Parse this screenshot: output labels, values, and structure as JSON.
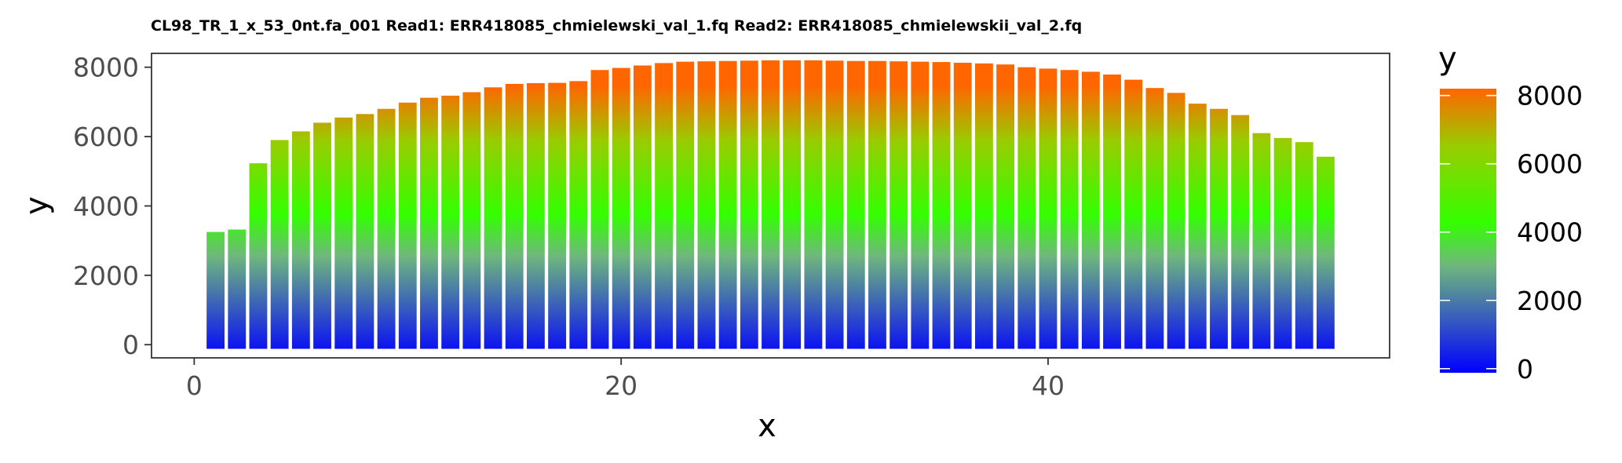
{
  "chart_data": {
    "type": "bar",
    "title": "CL98_TR_1_x_53_0nt.fa_001 Read1: ERR418085_chmielewski_val_1.fq Read2: ERR418085_chmielewskii_val_2.fq",
    "xlabel": "x",
    "ylabel": "y",
    "x": [
      1,
      2,
      3,
      4,
      5,
      6,
      7,
      8,
      9,
      10,
      11,
      12,
      13,
      14,
      15,
      16,
      17,
      18,
      19,
      20,
      21,
      22,
      23,
      24,
      25,
      26,
      27,
      28,
      29,
      30,
      31,
      32,
      33,
      34,
      35,
      36,
      37,
      38,
      39,
      40,
      41,
      42,
      43,
      44,
      45,
      46,
      47,
      48,
      49,
      50,
      51,
      52,
      53
    ],
    "values": [
      3250,
      3320,
      5230,
      5900,
      6150,
      6400,
      6550,
      6650,
      6800,
      6980,
      7120,
      7180,
      7280,
      7420,
      7520,
      7540,
      7550,
      7600,
      7920,
      7980,
      8050,
      8120,
      8160,
      8170,
      8180,
      8190,
      8200,
      8200,
      8200,
      8190,
      8180,
      8180,
      8170,
      8160,
      8150,
      8130,
      8110,
      8080,
      8000,
      7960,
      7920,
      7870,
      7790,
      7640,
      7400,
      7260,
      6950,
      6800,
      6620,
      6100,
      5960,
      5840,
      5420
    ],
    "xlim": [
      -2,
      56
    ],
    "ylim": [
      -380,
      8400
    ],
    "x_ticks": [
      0,
      20,
      40
    ],
    "y_ticks": [
      0,
      2000,
      4000,
      6000,
      8000
    ],
    "grid": false,
    "colors": {
      "low": "#0000ff",
      "mid_low": "#6fb87c",
      "mid": "#33ff00",
      "mid_high": "#99cc00",
      "high": "#ff6600"
    },
    "legend": {
      "title": "y",
      "position": "right",
      "ticks": [
        0,
        2000,
        4000,
        6000,
        8000
      ],
      "range": [
        -120,
        8200
      ]
    }
  }
}
